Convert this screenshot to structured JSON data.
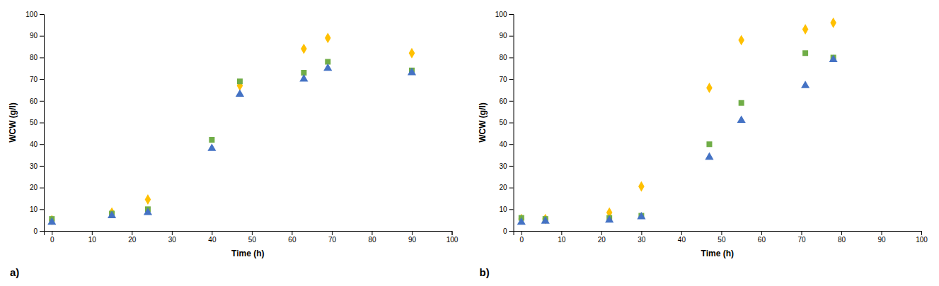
{
  "chart_data": [
    {
      "type": "scatter",
      "xlabel": "Time (h)",
      "ylabel": "WCW (g/l)",
      "annotations": [
        "a)"
      ],
      "xlim": [
        -2,
        100
      ],
      "ylim": [
        0,
        100
      ],
      "xticks": [
        0,
        10,
        20,
        30,
        40,
        50,
        60,
        70,
        80,
        90,
        100
      ],
      "yticks": [
        0,
        10,
        20,
        30,
        40,
        50,
        60,
        70,
        80,
        90,
        100
      ],
      "grid": false,
      "series": [
        {
          "color": "#FFC000",
          "marker": "diamond",
          "x": [
            0,
            15,
            24,
            47,
            63,
            69,
            90
          ],
          "values": [
            5,
            8.5,
            14.5,
            67,
            84,
            89,
            82
          ]
        },
        {
          "color": "#70AD47",
          "marker": "square",
          "x": [
            0,
            15,
            24,
            40,
            47,
            63,
            69,
            90
          ],
          "values": [
            5.5,
            8,
            10,
            42,
            69,
            73,
            78,
            74
          ]
        },
        {
          "color": "#4472C4",
          "marker": "triangle",
          "x": [
            0,
            15,
            24,
            40,
            47,
            63,
            69,
            90
          ],
          "values": [
            4,
            7,
            8.5,
            38,
            63,
            70,
            75,
            73
          ]
        }
      ]
    },
    {
      "type": "scatter",
      "xlabel": "Time (h)",
      "ylabel": "WCW (g/l)",
      "annotations": [
        "b)"
      ],
      "xlim": [
        -2,
        100
      ],
      "ylim": [
        0,
        100
      ],
      "xticks": [
        0,
        10,
        20,
        30,
        40,
        50,
        60,
        70,
        80,
        90,
        100
      ],
      "yticks": [
        0,
        10,
        20,
        30,
        40,
        50,
        60,
        70,
        80,
        90,
        100
      ],
      "grid": false,
      "series": [
        {
          "color": "#FFC000",
          "marker": "diamond",
          "x": [
            0,
            6,
            22,
            30,
            47,
            55,
            71,
            78
          ],
          "values": [
            5.5,
            5.5,
            8.5,
            20.5,
            66,
            88,
            93,
            96
          ]
        },
        {
          "color": "#70AD47",
          "marker": "square",
          "x": [
            0,
            6,
            22,
            30,
            47,
            55,
            71,
            78
          ],
          "values": [
            6,
            5.5,
            6,
            7,
            40,
            59,
            82,
            80
          ]
        },
        {
          "color": "#4472C4",
          "marker": "triangle",
          "x": [
            0,
            6,
            22,
            30,
            47,
            55,
            71,
            78
          ],
          "values": [
            4,
            4.5,
            5,
            6.5,
            34,
            51,
            67,
            79
          ]
        }
      ]
    }
  ]
}
